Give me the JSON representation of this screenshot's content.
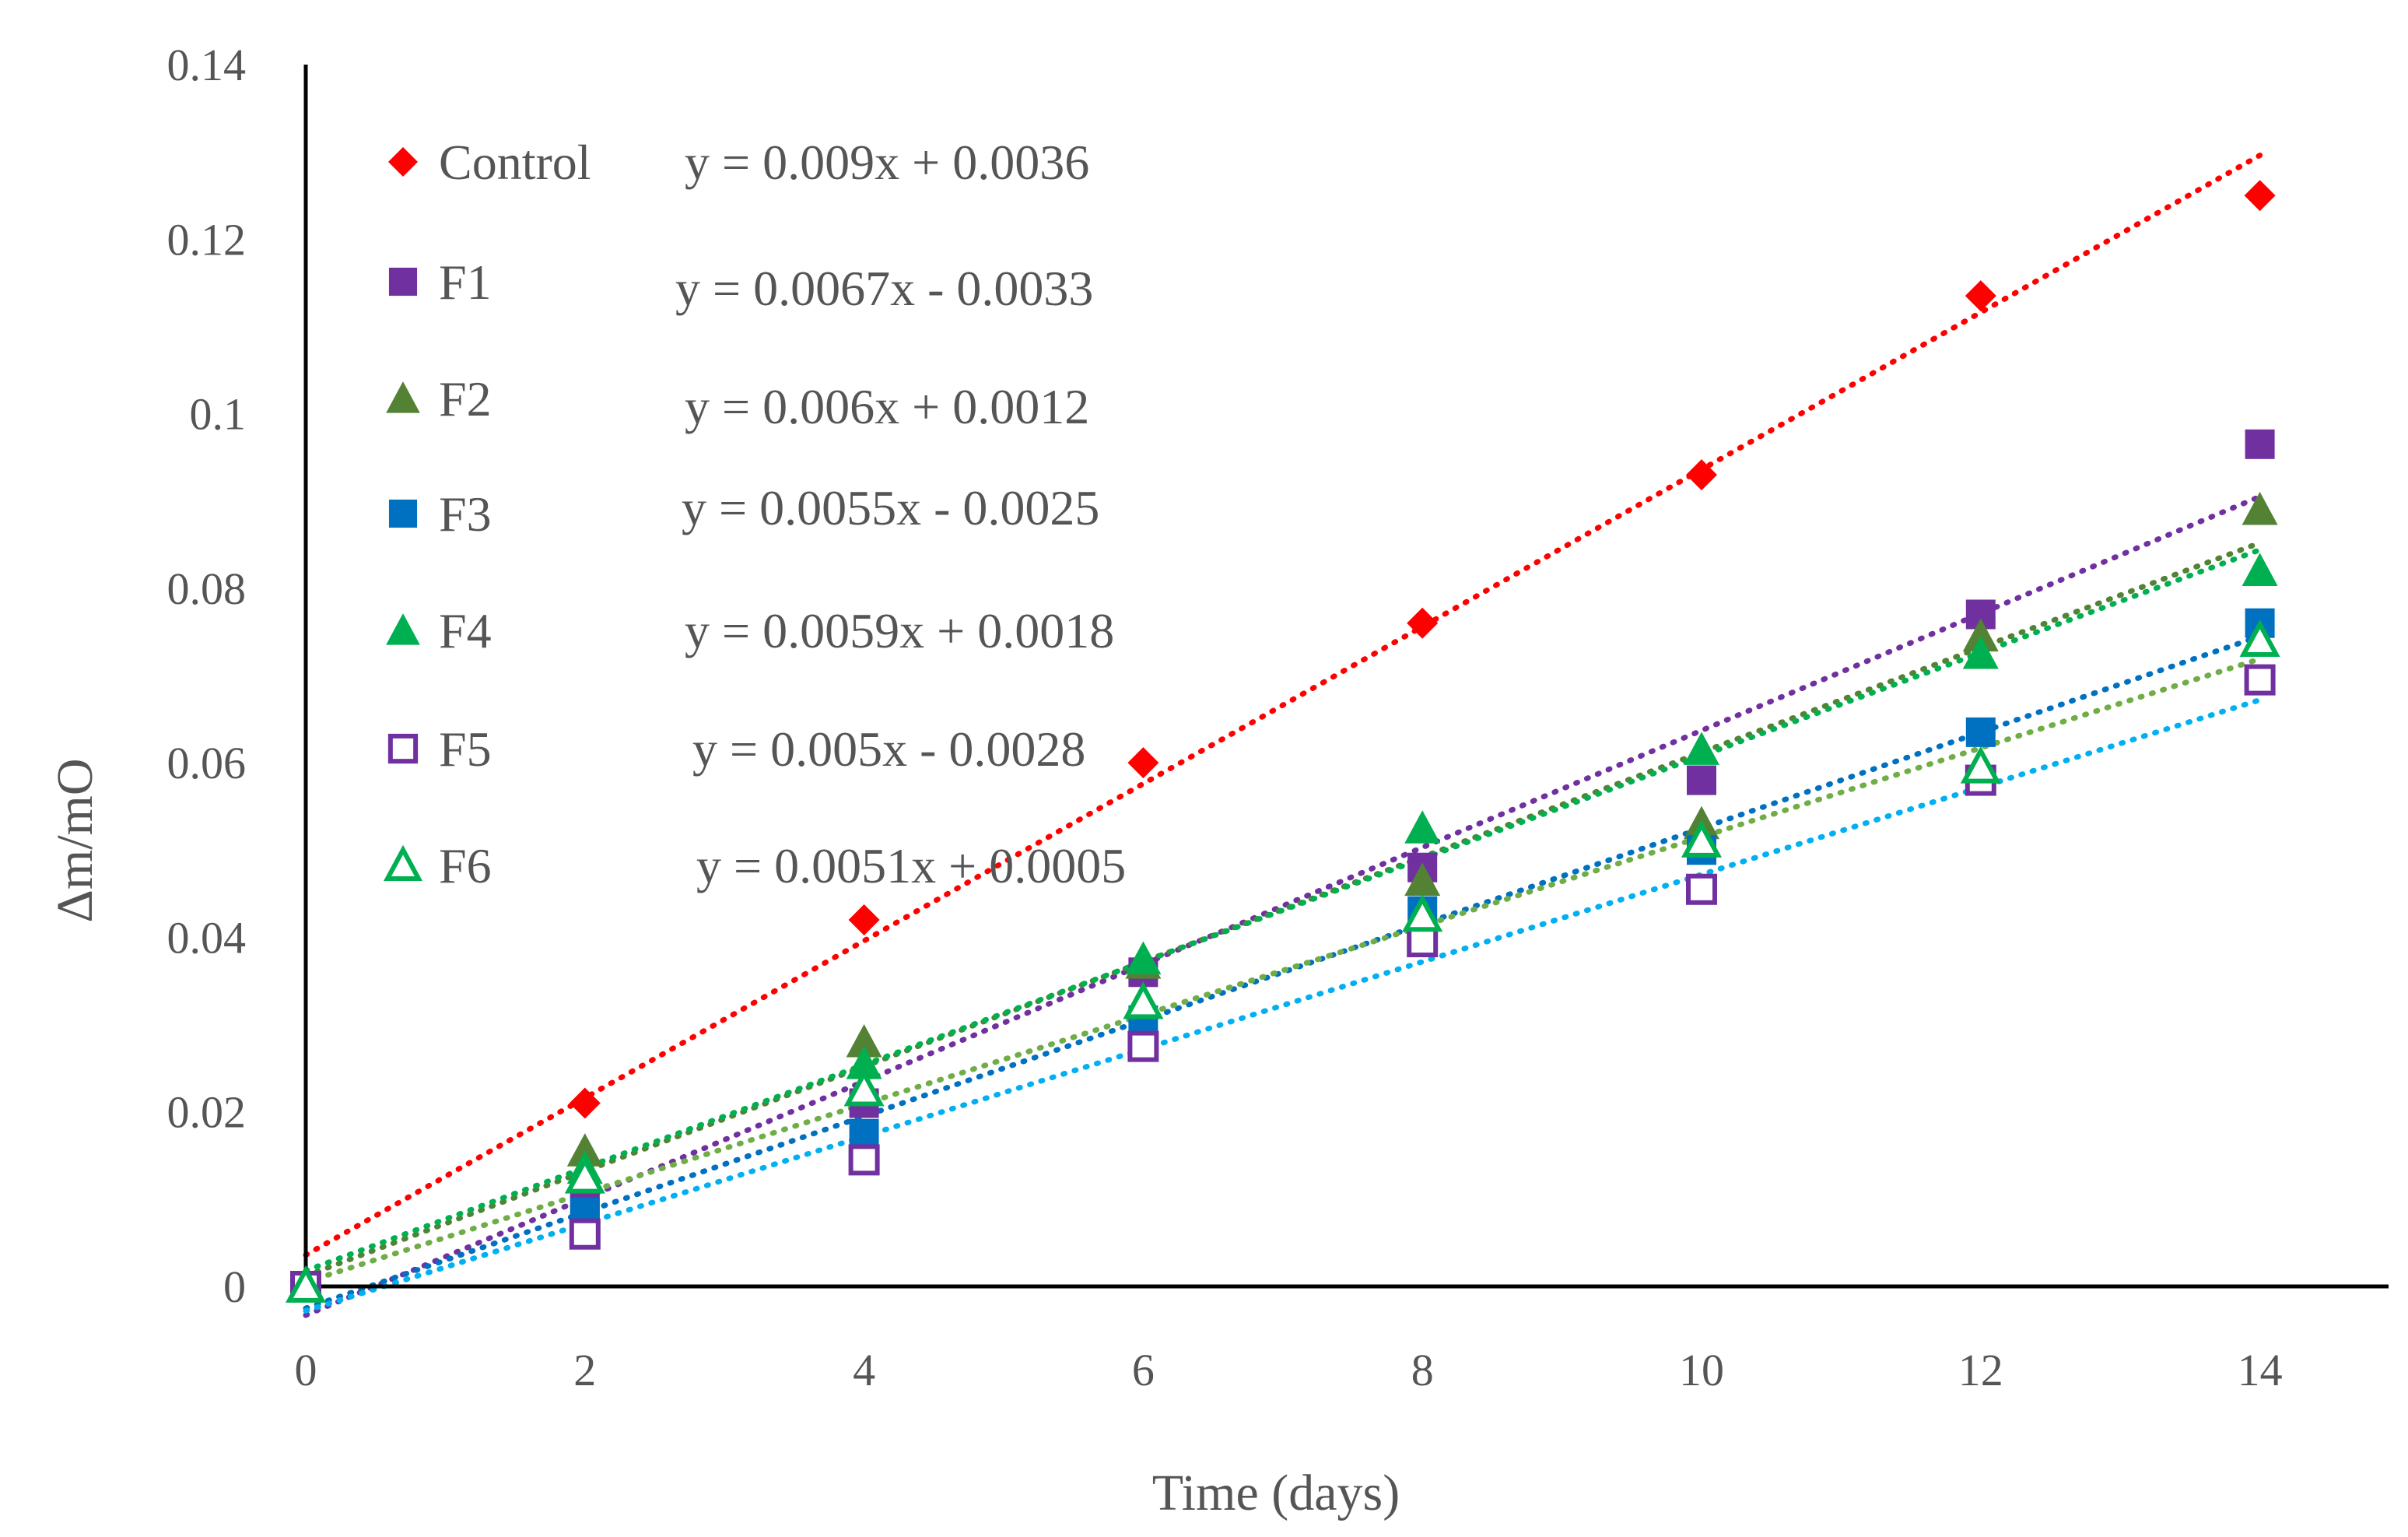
{
  "chart_data": {
    "type": "scatter",
    "title": "",
    "xlabel": "Time (days)",
    "ylabel": "Δm/mO",
    "xlim": [
      0,
      15
    ],
    "ylim": [
      0,
      0.14
    ],
    "x_ticks": [
      0,
      2,
      4,
      6,
      8,
      10,
      12,
      14
    ],
    "x_tick_labels": [
      "0",
      "2",
      "4",
      "6",
      "8",
      "10",
      "12",
      "14"
    ],
    "y_ticks": [
      0,
      0.02,
      0.04,
      0.06,
      0.08,
      0.1,
      0.12,
      0.14
    ],
    "y_tick_labels": [
      "0",
      "0.02",
      "0.04",
      "0.06",
      "0.08",
      "0.1",
      "0.12",
      "0.14"
    ],
    "grid": false,
    "legend_position": "top-left",
    "x": [
      0,
      2,
      4,
      6,
      8,
      10,
      12,
      14
    ],
    "series": [
      {
        "name": "Control",
        "marker": "diamond",
        "filled": true,
        "color": "#ff0000",
        "trend_color": "#ff0000",
        "values": [
          0,
          0.021,
          0.042,
          0.06,
          0.076,
          0.093,
          0.1135,
          0.125
        ],
        "trend": {
          "slope": 0.009,
          "intercept": 0.0036
        },
        "equation": "y = 0.009x + 0.0036"
      },
      {
        "name": "F1",
        "marker": "square",
        "filled": true,
        "color": "#7030a0",
        "trend_color": "#7030a0",
        "values": [
          0,
          0.009,
          0.021,
          0.036,
          0.048,
          0.058,
          0.077,
          0.0965
        ],
        "trend": {
          "slope": 0.0067,
          "intercept": -0.0033
        },
        "equation": "y = 0.0067x - 0.0033"
      },
      {
        "name": "F2",
        "marker": "triangle",
        "filled": true,
        "color": "#548235",
        "trend_color": "#548235",
        "values": [
          0,
          0.0155,
          0.028,
          0.037,
          0.0465,
          0.053,
          0.0745,
          0.089
        ],
        "trend": {
          "slope": 0.006,
          "intercept": 0.0012
        },
        "equation": "y = 0.006x + 0.0012"
      },
      {
        "name": "F3",
        "marker": "square",
        "filled": true,
        "color": "#0070c0",
        "trend_color": "#0070c0",
        "values": [
          0,
          0.0085,
          0.0175,
          0.0305,
          0.043,
          0.05,
          0.0635,
          0.076
        ],
        "trend": {
          "slope": 0.0055,
          "intercept": -0.0025
        },
        "equation": "y = 0.0055x - 0.0025"
      },
      {
        "name": "F4",
        "marker": "triangle",
        "filled": true,
        "color": "#00b050",
        "trend_color": "#00b050",
        "values": [
          0,
          0.0135,
          0.0255,
          0.0375,
          0.0525,
          0.0615,
          0.0725,
          0.082
        ],
        "trend": {
          "slope": 0.0059,
          "intercept": 0.0018
        },
        "equation": "y = 0.0059x + 0.0018"
      },
      {
        "name": "F5",
        "marker": "square",
        "filled": false,
        "color": "#7030a0",
        "trend_color": "#00b0f0",
        "values": [
          0,
          0.006,
          0.0145,
          0.0275,
          0.0395,
          0.0455,
          0.058,
          0.0695
        ],
        "trend": {
          "slope": 0.005,
          "intercept": -0.0028
        },
        "equation": "y = 0.005x - 0.0028"
      },
      {
        "name": "F6",
        "marker": "triangle",
        "filled": false,
        "color": "#00b050",
        "trend_color": "#70ad47",
        "values": [
          0,
          0.0125,
          0.0225,
          0.0325,
          0.0425,
          0.051,
          0.0595,
          0.074
        ],
        "trend": {
          "slope": 0.0051,
          "intercept": 0.0005
        },
        "equation": "y = 0.0051x + 0.0005"
      }
    ]
  }
}
